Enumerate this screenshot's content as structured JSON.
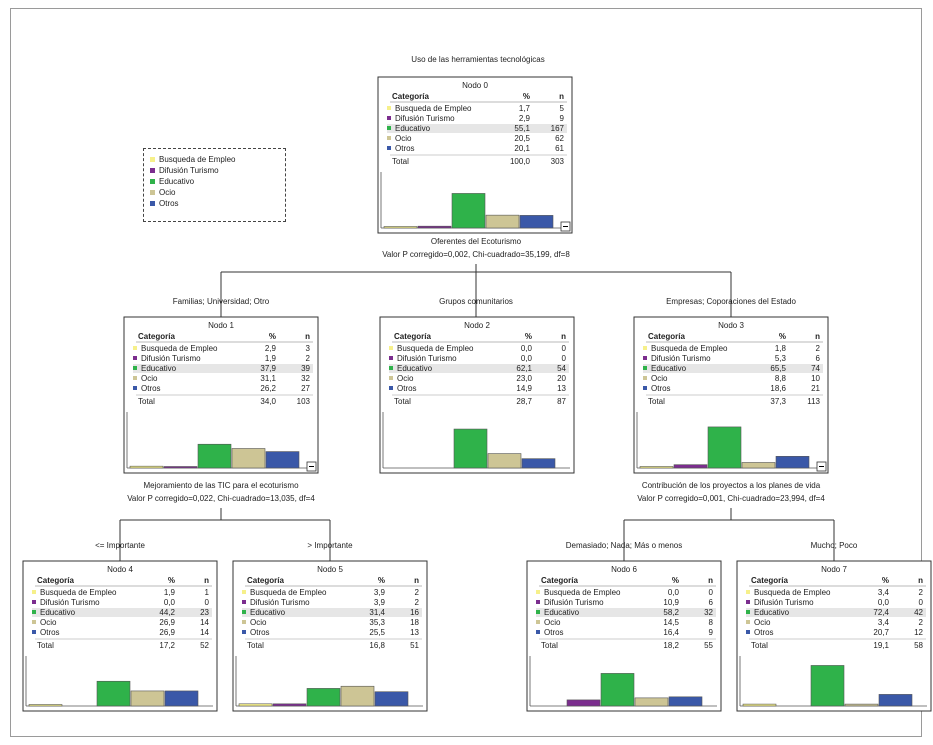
{
  "title": "Uso de las herramientas tecnológicas",
  "colors": {
    "Busqueda de Empleo": "#f6f08a",
    "Difusión Turismo": "#7b2d8e",
    "Educativo": "#2fb24a",
    "Ocio": "#cdc595",
    "Otros": "#3a58a8"
  },
  "legend": [
    {
      "label": "Busqueda de Empleo",
      "color": "#f6f08a"
    },
    {
      "label": "Difusión Turismo",
      "color": "#7b2d8e"
    },
    {
      "label": "Educativo",
      "color": "#2fb24a"
    },
    {
      "label": "Ocio",
      "color": "#cdc595"
    },
    {
      "label": "Otros",
      "color": "#3a58a8"
    }
  ],
  "header": {
    "category": "Categoría",
    "pct": "%",
    "n": "n"
  },
  "splits": [
    {
      "id": "s0",
      "var": "Oferentes del Ecoturismo",
      "stat": "Valor P corregido=0,002, Chi-cuadrado=35,199, df=8"
    },
    {
      "id": "s1",
      "var": "Mejoramiento de las TIC para el ecoturismo",
      "stat": "Valor P corregido=0,022, Chi-cuadrado=13,035, df=4"
    },
    {
      "id": "s3",
      "var": "Contribución de los proyectos a los planes de vida",
      "stat": "Valor P corregido=0,001, Chi-cuadrado=23,994, df=4"
    }
  ],
  "branches": [
    {
      "id": "b1",
      "label": "Familias; Universidad; Otro"
    },
    {
      "id": "b2",
      "label": "Grupos comunitarios"
    },
    {
      "id": "b3",
      "label": "Empresas; Coporaciones del Estado"
    },
    {
      "id": "b4",
      "label": "<= Importante"
    },
    {
      "id": "b5",
      "label": "> Importante"
    },
    {
      "id": "b6",
      "label": "Demasiado; Nada; Más o menos"
    },
    {
      "id": "b7",
      "label": "Mucho; Poco"
    }
  ],
  "nodes": [
    {
      "id": "n0",
      "title": "Nodo 0",
      "rows": [
        {
          "cat": "Busqueda de Empleo",
          "pct": "1,7",
          "n": "5"
        },
        {
          "cat": "Difusión Turismo",
          "pct": "2,9",
          "n": "9"
        },
        {
          "cat": "Educativo",
          "pct": "55,1",
          "n": "167"
        },
        {
          "cat": "Ocio",
          "pct": "20,5",
          "n": "62"
        },
        {
          "cat": "Otros",
          "pct": "20,1",
          "n": "61"
        }
      ],
      "total_label": "Total",
      "total_pct": "100,0",
      "total_n": "303",
      "bars": [
        1.7,
        2.9,
        55.1,
        20.5,
        20.1
      ]
    },
    {
      "id": "n1",
      "title": "Nodo 1",
      "rows": [
        {
          "cat": "Busqueda de Empleo",
          "pct": "2,9",
          "n": "3"
        },
        {
          "cat": "Difusión Turismo",
          "pct": "1,9",
          "n": "2"
        },
        {
          "cat": "Educativo",
          "pct": "37,9",
          "n": "39"
        },
        {
          "cat": "Ocio",
          "pct": "31,1",
          "n": "32"
        },
        {
          "cat": "Otros",
          "pct": "26,2",
          "n": "27"
        }
      ],
      "total_label": "Total",
      "total_pct": "34,0",
      "total_n": "103",
      "bars": [
        2.9,
        1.9,
        37.9,
        31.1,
        26.2
      ]
    },
    {
      "id": "n2",
      "title": "Nodo 2",
      "rows": [
        {
          "cat": "Busqueda de Empleo",
          "pct": "0,0",
          "n": "0"
        },
        {
          "cat": "Difusión Turismo",
          "pct": "0,0",
          "n": "0"
        },
        {
          "cat": "Educativo",
          "pct": "62,1",
          "n": "54"
        },
        {
          "cat": "Ocio",
          "pct": "23,0",
          "n": "20"
        },
        {
          "cat": "Otros",
          "pct": "14,9",
          "n": "13"
        }
      ],
      "total_label": "Total",
      "total_pct": "28,7",
      "total_n": "87",
      "bars": [
        0,
        0,
        62.1,
        23.0,
        14.9
      ]
    },
    {
      "id": "n3",
      "title": "Nodo 3",
      "rows": [
        {
          "cat": "Busqueda de Empleo",
          "pct": "1,8",
          "n": "2"
        },
        {
          "cat": "Difusión Turismo",
          "pct": "5,3",
          "n": "6"
        },
        {
          "cat": "Educativo",
          "pct": "65,5",
          "n": "74"
        },
        {
          "cat": "Ocio",
          "pct": "8,8",
          "n": "10"
        },
        {
          "cat": "Otros",
          "pct": "18,6",
          "n": "21"
        }
      ],
      "total_label": "Total",
      "total_pct": "37,3",
      "total_n": "113",
      "bars": [
        1.8,
        5.3,
        65.5,
        8.8,
        18.6
      ]
    },
    {
      "id": "n4",
      "title": "Nodo 4",
      "rows": [
        {
          "cat": "Busqueda de Empleo",
          "pct": "1,9",
          "n": "1"
        },
        {
          "cat": "Difusión Turismo",
          "pct": "0,0",
          "n": "0"
        },
        {
          "cat": "Educativo",
          "pct": "44,2",
          "n": "23"
        },
        {
          "cat": "Ocio",
          "pct": "26,9",
          "n": "14"
        },
        {
          "cat": "Otros",
          "pct": "26,9",
          "n": "14"
        }
      ],
      "total_label": "Total",
      "total_pct": "17,2",
      "total_n": "52",
      "bars": [
        1.9,
        0,
        44.2,
        26.9,
        26.9
      ]
    },
    {
      "id": "n5",
      "title": "Nodo 5",
      "rows": [
        {
          "cat": "Busqueda de Empleo",
          "pct": "3,9",
          "n": "2"
        },
        {
          "cat": "Difusión Turismo",
          "pct": "3,9",
          "n": "2"
        },
        {
          "cat": "Educativo",
          "pct": "31,4",
          "n": "16"
        },
        {
          "cat": "Ocio",
          "pct": "35,3",
          "n": "18"
        },
        {
          "cat": "Otros",
          "pct": "25,5",
          "n": "13"
        }
      ],
      "total_label": "Total",
      "total_pct": "16,8",
      "total_n": "51",
      "bars": [
        3.9,
        3.9,
        31.4,
        35.3,
        25.5
      ]
    },
    {
      "id": "n6",
      "title": "Nodo 6",
      "rows": [
        {
          "cat": "Busqueda de Empleo",
          "pct": "0,0",
          "n": "0"
        },
        {
          "cat": "Difusión Turismo",
          "pct": "10,9",
          "n": "6"
        },
        {
          "cat": "Educativo",
          "pct": "58,2",
          "n": "32"
        },
        {
          "cat": "Ocio",
          "pct": "14,5",
          "n": "8"
        },
        {
          "cat": "Otros",
          "pct": "16,4",
          "n": "9"
        }
      ],
      "total_label": "Total",
      "total_pct": "18,2",
      "total_n": "55",
      "bars": [
        0,
        10.9,
        58.2,
        14.5,
        16.4
      ]
    },
    {
      "id": "n7",
      "title": "Nodo 7",
      "rows": [
        {
          "cat": "Busqueda de Empleo",
          "pct": "3,4",
          "n": "2"
        },
        {
          "cat": "Difusión Turismo",
          "pct": "0,0",
          "n": "0"
        },
        {
          "cat": "Educativo",
          "pct": "72,4",
          "n": "42"
        },
        {
          "cat": "Ocio",
          "pct": "3,4",
          "n": "2"
        },
        {
          "cat": "Otros",
          "pct": "20,7",
          "n": "12"
        }
      ],
      "total_label": "Total",
      "total_pct": "19,1",
      "total_n": "58",
      "bars": [
        3.4,
        0,
        72.4,
        3.4,
        20.7
      ]
    }
  ]
}
